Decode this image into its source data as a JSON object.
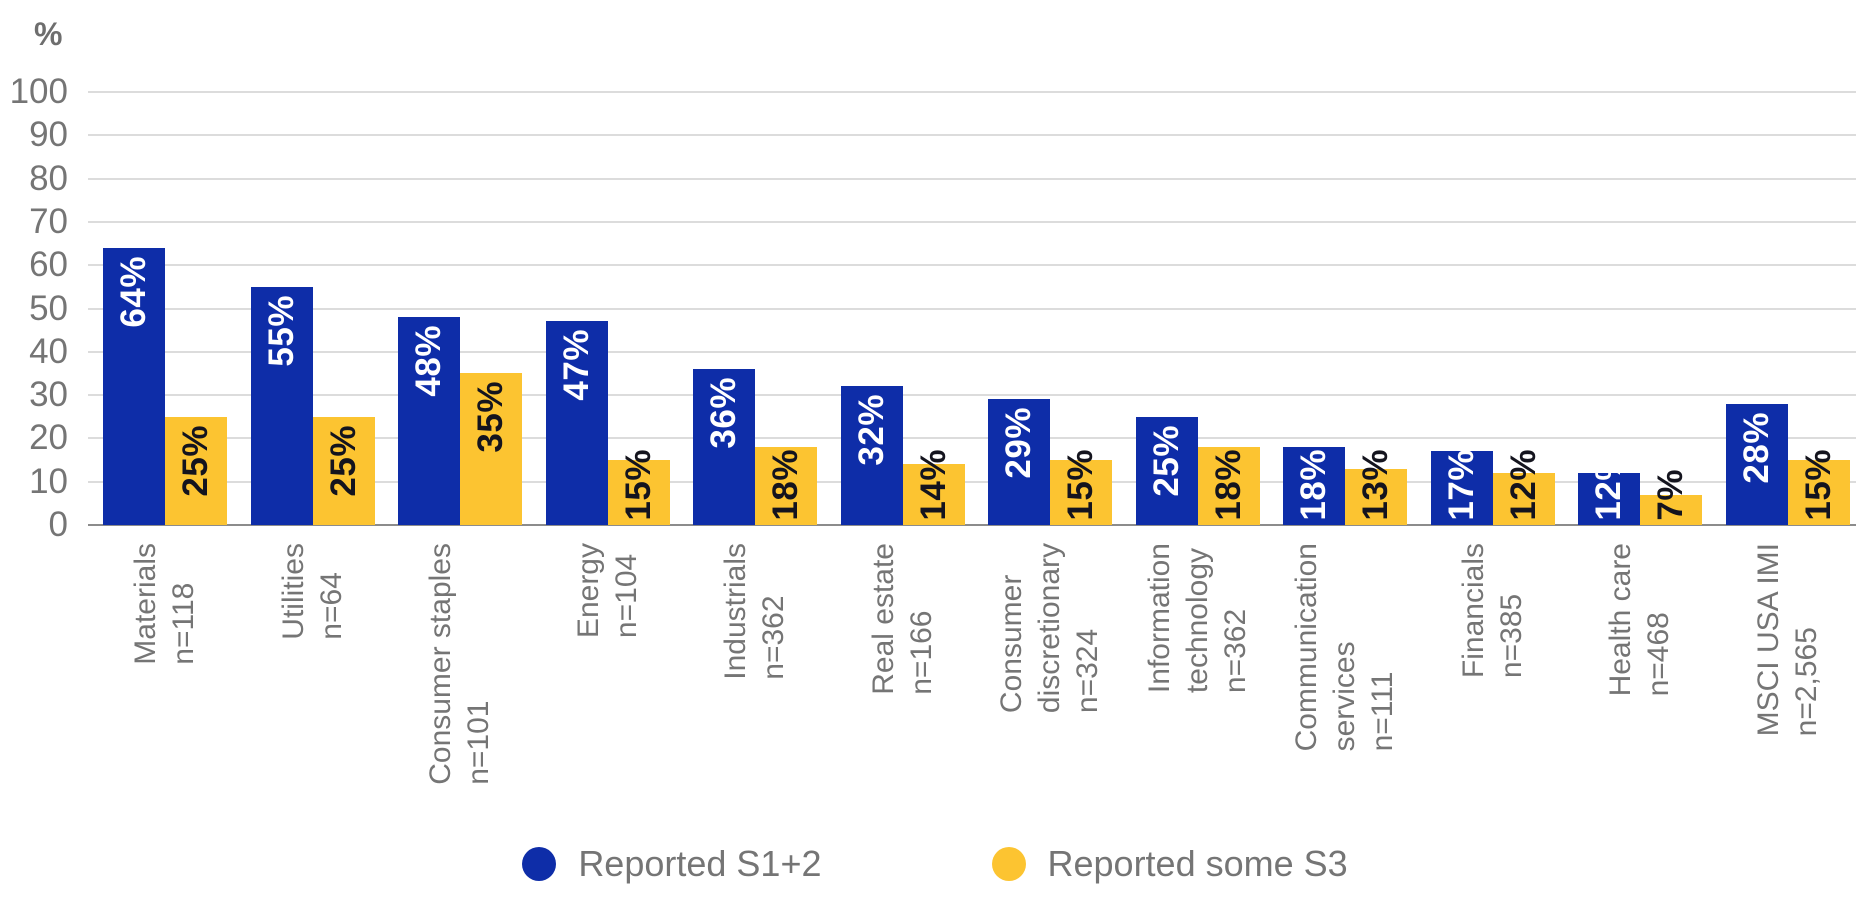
{
  "chart_data": {
    "type": "bar",
    "title": "",
    "ylabel": "%",
    "xlabel": "",
    "ylim": [
      0,
      100
    ],
    "ytick_step": 10,
    "grid": true,
    "legend_position": "bottom",
    "categories": [
      {
        "label_lines": [
          "Materials"
        ],
        "n_label": "n=118"
      },
      {
        "label_lines": [
          "Utilities"
        ],
        "n_label": "n=64"
      },
      {
        "label_lines": [
          "Consumer staples"
        ],
        "n_label": "n=101"
      },
      {
        "label_lines": [
          "Energy"
        ],
        "n_label": "n=104"
      },
      {
        "label_lines": [
          "Industrials"
        ],
        "n_label": "n=362"
      },
      {
        "label_lines": [
          "Real estate"
        ],
        "n_label": "n=166"
      },
      {
        "label_lines": [
          "Consumer",
          "discretionary"
        ],
        "n_label": "n=324"
      },
      {
        "label_lines": [
          "Information",
          "technology"
        ],
        "n_label": "n=362"
      },
      {
        "label_lines": [
          "Communication",
          "services"
        ],
        "n_label": "n=111"
      },
      {
        "label_lines": [
          "Financials"
        ],
        "n_label": "n=385"
      },
      {
        "label_lines": [
          "Health care"
        ],
        "n_label": "n=468"
      },
      {
        "label_lines": [
          "MSCI USA IMI"
        ],
        "n_label": "n=2,565"
      }
    ],
    "series": [
      {
        "name": "Reported S1+2",
        "color": "#0e2da8",
        "label_color": "#ffffff",
        "values": [
          64,
          55,
          48,
          47,
          36,
          32,
          29,
          25,
          18,
          17,
          12,
          28
        ]
      },
      {
        "name": "Reported some S3",
        "color": "#fcc431",
        "label_color": "#14141e",
        "values": [
          25,
          25,
          35,
          15,
          18,
          14,
          15,
          18,
          13,
          12,
          7,
          15
        ]
      }
    ],
    "value_suffix": "%"
  },
  "style_colors": {
    "gridline": "#dcdcdc",
    "axis_line": "#8c8c8c",
    "tick_text": "#757575",
    "category_text": "#757575",
    "legend_text": "#757575"
  }
}
